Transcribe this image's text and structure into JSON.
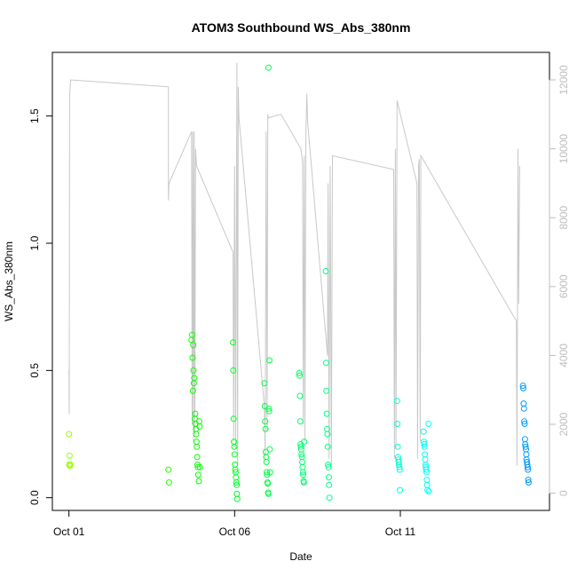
{
  "chart_data": {
    "type": "scatter",
    "title": "ATOM3 Southbound WS_Abs_380nm",
    "xlabel": "Date",
    "ylabel": "WS_Abs_380nm",
    "x_ticks": [
      {
        "label": "Oct 01",
        "day": 1
      },
      {
        "label": "Oct 06",
        "day": 6
      },
      {
        "label": "Oct 11",
        "day": 11
      }
    ],
    "x_range_days": [
      0.5,
      15.5
    ],
    "y_ticks": [
      {
        "label": "0.0",
        "value": 0.0
      },
      {
        "label": "0.5",
        "value": 0.5
      },
      {
        "label": "1.0",
        "value": 1.0
      },
      {
        "label": "1.5",
        "value": 1.5
      }
    ],
    "ylim": [
      -0.05,
      1.75
    ],
    "y2_ticks": [
      {
        "label": "0",
        "value": 0
      },
      {
        "label": "2000",
        "value": 2000
      },
      {
        "label": "4000",
        "value": 4000
      },
      {
        "label": "6000",
        "value": 6000
      },
      {
        "label": "8000",
        "value": 8000
      },
      {
        "label": "10000",
        "value": 10000
      },
      {
        "label": "12000",
        "value": 12000
      }
    ],
    "y2lim": [
      -500,
      12800
    ],
    "secondary_series": {
      "color": "#c8c8c8",
      "points": [
        [
          1.0,
          3600
        ],
        [
          1.01,
          2300
        ],
        [
          1.02,
          11500
        ],
        [
          1.05,
          12000
        ],
        [
          4.0,
          11800
        ],
        [
          4.0,
          8500
        ],
        [
          4.02,
          9000
        ],
        [
          4.7,
          10500
        ],
        [
          4.72,
          2000
        ],
        [
          4.74,
          10500
        ],
        [
          4.76,
          1500
        ],
        [
          4.78,
          10500
        ],
        [
          4.8,
          1700
        ],
        [
          4.82,
          10000
        ],
        [
          4.85,
          9500
        ],
        [
          5.95,
          7000
        ],
        [
          5.97,
          1500
        ],
        [
          6.0,
          9500
        ],
        [
          6.03,
          1300
        ],
        [
          6.07,
          12500
        ],
        [
          6.09,
          800
        ],
        [
          6.11,
          11800
        ],
        [
          6.13,
          10900
        ],
        [
          6.9,
          2500
        ],
        [
          6.92,
          1000
        ],
        [
          6.95,
          10500
        ],
        [
          6.98,
          1800
        ],
        [
          7.0,
          11000
        ],
        [
          7.02,
          10900
        ],
        [
          7.4,
          11000
        ],
        [
          8.0,
          10000
        ],
        [
          8.05,
          9600
        ],
        [
          8.07,
          2000
        ],
        [
          8.1,
          9800
        ],
        [
          8.12,
          1500
        ],
        [
          8.15,
          10500
        ],
        [
          8.18,
          11600
        ],
        [
          8.2,
          10800
        ],
        [
          8.8,
          4000
        ],
        [
          8.82,
          9000
        ],
        [
          8.85,
          1000
        ],
        [
          8.88,
          9500
        ],
        [
          8.92,
          700
        ],
        [
          8.95,
          9800
        ],
        [
          10.8,
          9400
        ],
        [
          10.82,
          1000
        ],
        [
          10.85,
          10000
        ],
        [
          10.87,
          1300
        ],
        [
          10.9,
          11400
        ],
        [
          11.5,
          9000
        ],
        [
          11.52,
          1000
        ],
        [
          11.55,
          9500
        ],
        [
          11.57,
          9700
        ],
        [
          11.6,
          1500
        ],
        [
          11.62,
          9800
        ],
        [
          14.5,
          5000
        ],
        [
          14.52,
          800
        ],
        [
          14.55,
          10000
        ],
        [
          14.57,
          5500
        ],
        [
          14.6,
          9500
        ]
      ]
    },
    "series": [
      {
        "color_scale": "rainbow",
        "points": [
          [
            1.0,
            0.25
          ],
          [
            1.01,
            0.13
          ],
          [
            1.02,
            0.165
          ],
          [
            1.03,
            0.125
          ],
          [
            1.04,
            0.13
          ],
          [
            4.0,
            0.11
          ],
          [
            4.02,
            0.06
          ],
          [
            4.7,
            0.62
          ],
          [
            4.72,
            0.64
          ],
          [
            4.73,
            0.55
          ],
          [
            4.74,
            0.42
          ],
          [
            4.75,
            0.6
          ],
          [
            4.76,
            0.5
          ],
          [
            4.77,
            0.45
          ],
          [
            4.78,
            0.47
          ],
          [
            4.8,
            0.31
          ],
          [
            4.81,
            0.33
          ],
          [
            4.82,
            0.29
          ],
          [
            4.83,
            0.27
          ],
          [
            4.84,
            0.25
          ],
          [
            4.85,
            0.22
          ],
          [
            4.86,
            0.2
          ],
          [
            4.87,
            0.16
          ],
          [
            4.88,
            0.13
          ],
          [
            4.89,
            0.12
          ],
          [
            4.9,
            0.09
          ],
          [
            4.92,
            0.065
          ],
          [
            4.93,
            0.3
          ],
          [
            4.94,
            0.28
          ],
          [
            4.95,
            0.12
          ],
          [
            5.95,
            0.61
          ],
          [
            5.96,
            0.5
          ],
          [
            5.97,
            0.31
          ],
          [
            5.98,
            0.22
          ],
          [
            5.99,
            0.2
          ],
          [
            6.0,
            0.17
          ],
          [
            6.01,
            0.13
          ],
          [
            6.02,
            0.11
          ],
          [
            6.03,
            0.1
          ],
          [
            6.04,
            0.08
          ],
          [
            6.05,
            0.06
          ],
          [
            6.06,
            0.05
          ],
          [
            6.07,
            0.015
          ],
          [
            6.08,
            -0.005
          ],
          [
            6.9,
            0.45
          ],
          [
            6.91,
            0.36
          ],
          [
            6.92,
            0.3
          ],
          [
            6.93,
            0.27
          ],
          [
            6.94,
            0.18
          ],
          [
            6.95,
            0.16
          ],
          [
            6.96,
            0.14
          ],
          [
            6.97,
            0.1
          ],
          [
            6.98,
            0.09
          ],
          [
            6.99,
            0.06
          ],
          [
            7.0,
            0.055
          ],
          [
            7.01,
            0.02
          ],
          [
            7.02,
            0.015
          ],
          [
            7.03,
            0.35
          ],
          [
            7.04,
            0.34
          ],
          [
            7.05,
            0.54
          ],
          [
            7.06,
            0.19
          ],
          [
            7.07,
            0.1
          ],
          [
            7.02,
            1.69
          ],
          [
            7.95,
            0.49
          ],
          [
            7.96,
            0.48
          ],
          [
            7.97,
            0.4
          ],
          [
            7.98,
            0.3
          ],
          [
            7.99,
            0.21
          ],
          [
            8.0,
            0.2
          ],
          [
            8.01,
            0.19
          ],
          [
            8.02,
            0.17
          ],
          [
            8.03,
            0.16
          ],
          [
            8.04,
            0.14
          ],
          [
            8.05,
            0.12
          ],
          [
            8.06,
            0.1
          ],
          [
            8.07,
            0.09
          ],
          [
            8.08,
            0.065
          ],
          [
            8.09,
            0.06
          ],
          [
            8.1,
            0.22
          ],
          [
            8.75,
            0.89
          ],
          [
            8.76,
            0.53
          ],
          [
            8.77,
            0.42
          ],
          [
            8.78,
            0.33
          ],
          [
            8.79,
            0.27
          ],
          [
            8.8,
            0.25
          ],
          [
            8.81,
            0.2
          ],
          [
            8.82,
            0.13
          ],
          [
            8.83,
            0.12
          ],
          [
            8.84,
            0.08
          ],
          [
            8.85,
            0.05
          ],
          [
            8.86,
            0.0
          ],
          [
            10.9,
            0.38
          ],
          [
            10.91,
            0.29
          ],
          [
            10.92,
            0.2
          ],
          [
            10.93,
            0.16
          ],
          [
            10.94,
            0.15
          ],
          [
            10.95,
            0.14
          ],
          [
            10.96,
            0.13
          ],
          [
            10.97,
            0.12
          ],
          [
            10.98,
            0.11
          ],
          [
            10.99,
            0.03
          ],
          [
            11.7,
            0.26
          ],
          [
            11.71,
            0.22
          ],
          [
            11.72,
            0.21
          ],
          [
            11.73,
            0.2
          ],
          [
            11.74,
            0.17
          ],
          [
            11.75,
            0.15
          ],
          [
            11.76,
            0.13
          ],
          [
            11.77,
            0.12
          ],
          [
            11.78,
            0.11
          ],
          [
            11.79,
            0.1
          ],
          [
            11.8,
            0.07
          ],
          [
            11.81,
            0.05
          ],
          [
            11.82,
            0.03
          ],
          [
            11.85,
            0.29
          ],
          [
            11.86,
            0.025
          ],
          [
            14.7,
            0.44
          ],
          [
            14.71,
            0.43
          ],
          [
            14.72,
            0.37
          ],
          [
            14.73,
            0.35
          ],
          [
            14.74,
            0.3
          ],
          [
            14.75,
            0.29
          ],
          [
            14.76,
            0.23
          ],
          [
            14.77,
            0.21
          ],
          [
            14.78,
            0.2
          ],
          [
            14.79,
            0.19
          ],
          [
            14.8,
            0.17
          ],
          [
            14.81,
            0.15
          ],
          [
            14.82,
            0.14
          ],
          [
            14.83,
            0.13
          ],
          [
            14.84,
            0.12
          ],
          [
            14.85,
            0.11
          ],
          [
            14.86,
            0.07
          ],
          [
            14.87,
            0.06
          ]
        ]
      }
    ]
  }
}
